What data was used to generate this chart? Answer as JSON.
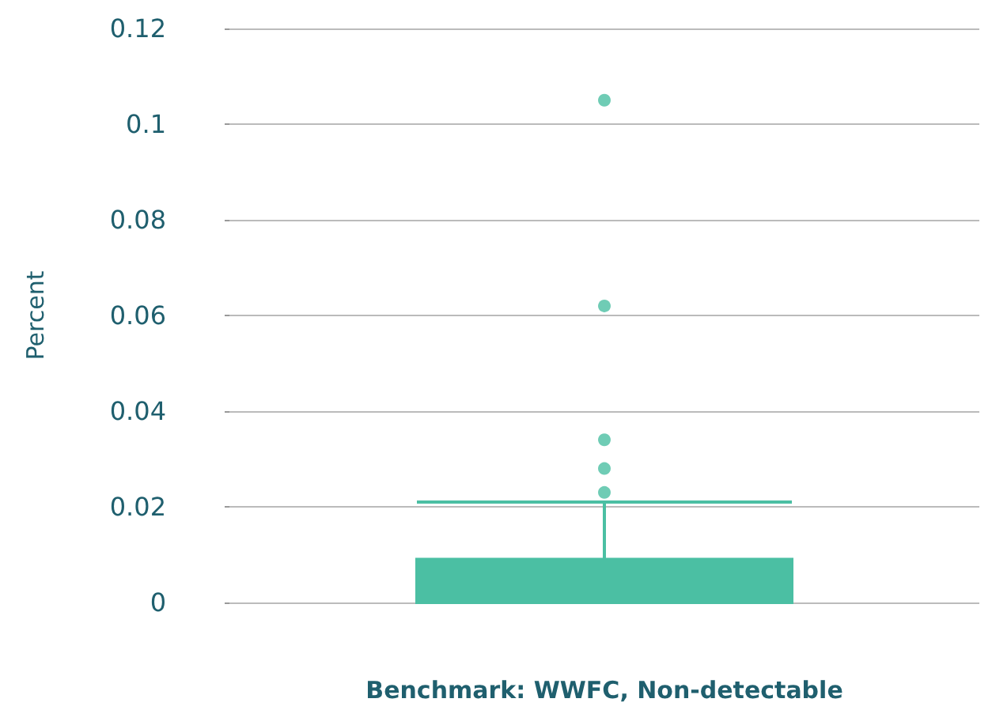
{
  "chart_data": {
    "type": "box",
    "ylabel": "Percent",
    "xlabel": "Benchmark: WWFC, Non-detectable",
    "categories": [
      null
    ],
    "boxes": [
      {
        "low": 0,
        "q1": 0,
        "q3": 0.009,
        "high": 0.021,
        "outliers": [
          0.105,
          0.062,
          0.034,
          0.028,
          0.023
        ]
      }
    ],
    "color": "#4bbfa3",
    "ylim": [
      0,
      0.12
    ],
    "yticks": [
      0,
      0.02,
      0.04,
      0.06,
      0.08,
      0.1,
      0.12
    ],
    "grid": "y"
  }
}
